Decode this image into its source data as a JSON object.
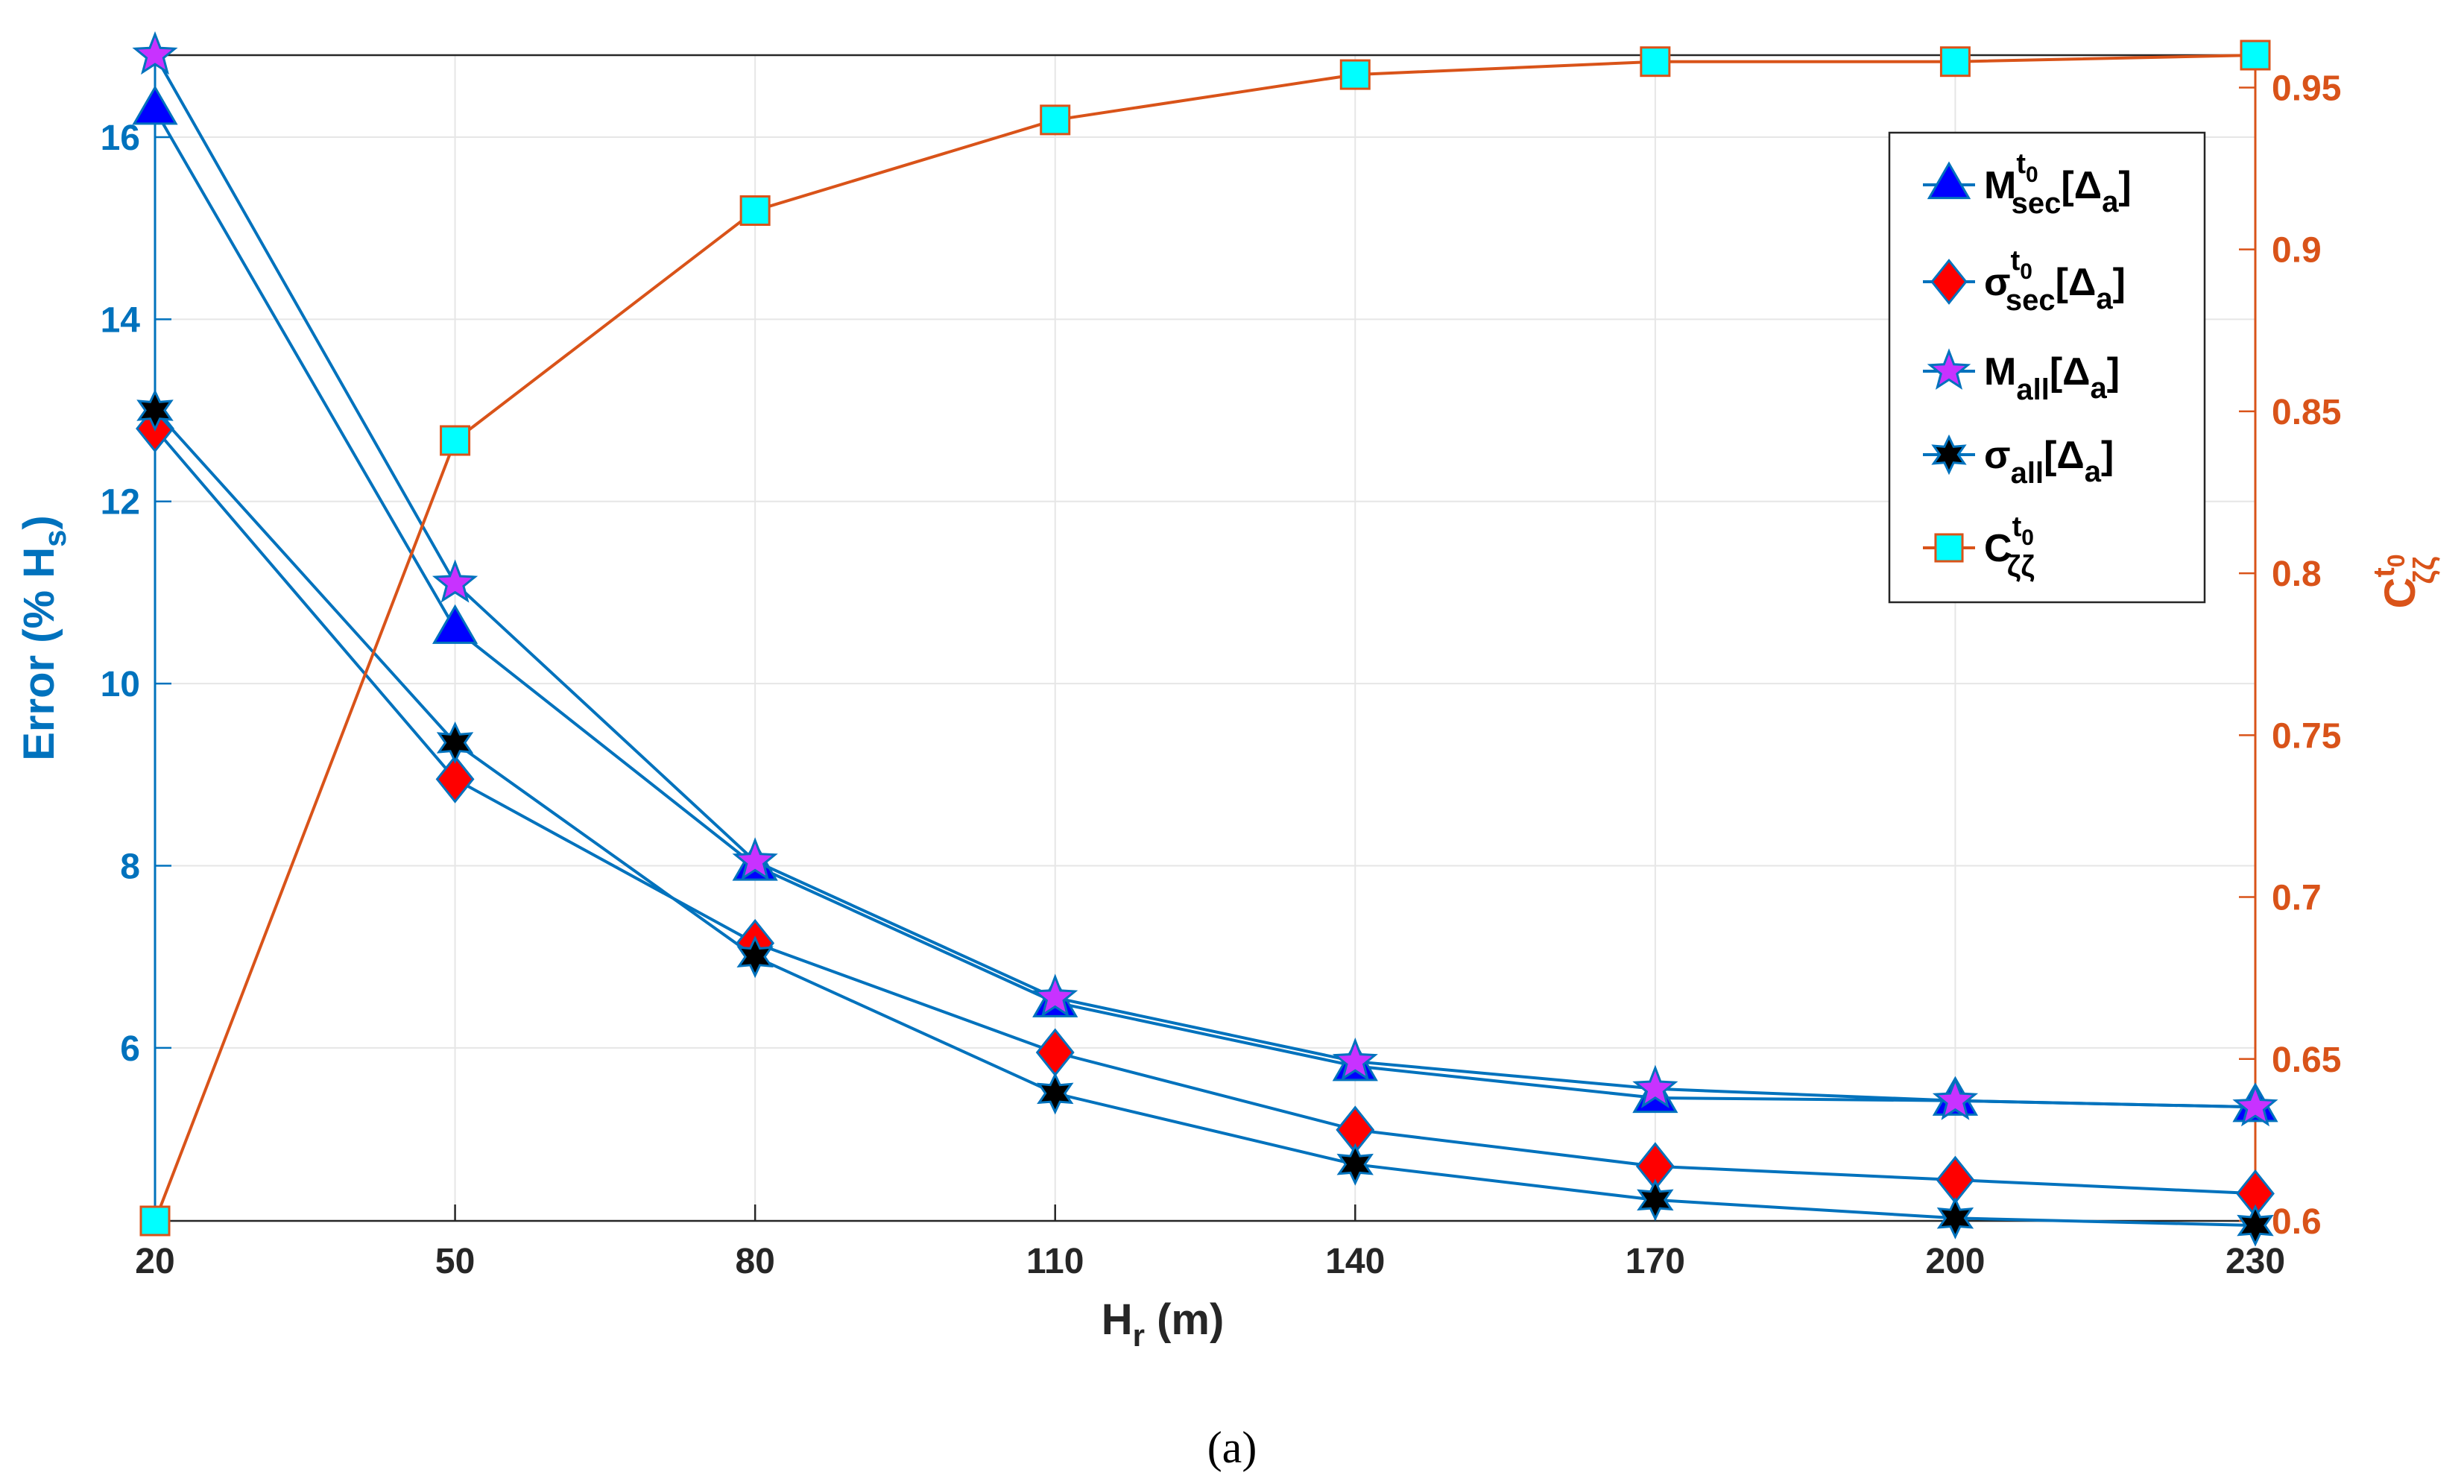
{
  "chart_data": {
    "type": "line",
    "x": [
      20,
      50,
      80,
      110,
      140,
      170,
      200,
      230
    ],
    "xlabel": {
      "main": "H",
      "sub": "r",
      "unit": " (m)"
    },
    "xlim": [
      20,
      230
    ],
    "xticks": [
      "20",
      "50",
      "80",
      "110",
      "140",
      "170",
      "200",
      "230"
    ],
    "ylabel_left": {
      "main": "Error (% H",
      "sub": "s",
      "close": ")"
    },
    "ylim_left": [
      4.1,
      16.9
    ],
    "yticks_left": [
      "6",
      "8",
      "10",
      "12",
      "14",
      "16"
    ],
    "ylabel_right": {
      "main": "C",
      "sup": "t",
      "supsub": "0",
      "sub": "ζζ"
    },
    "ylim_right": [
      0.6,
      0.96
    ],
    "yticks_right": [
      "0.6",
      "0.65",
      "0.7",
      "0.75",
      "0.8",
      "0.85",
      "0.9",
      "0.95"
    ],
    "grid": true,
    "legend_position": "top-right",
    "series": [
      {
        "name": "M_sec^t0[Δa]",
        "legend": {
          "main": "M",
          "sup": "t",
          "supsub": "0",
          "sub": "sec",
          "bracket": "[Δ",
          "bsub": "a",
          "close": "]"
        },
        "axis": "left",
        "marker": "triangle",
        "marker_color": "#0000ff",
        "line_color": "#0072bd",
        "values": [
          16.3,
          10.6,
          8.0,
          6.5,
          5.8,
          5.45,
          5.42,
          5.35
        ]
      },
      {
        "name": "σ_sec^t0[Δa]",
        "legend": {
          "main": "σ",
          "sup": "t",
          "supsub": "0",
          "sub": "sec",
          "bracket": "[Δ",
          "bsub": "a",
          "close": "]"
        },
        "axis": "left",
        "marker": "diamond",
        "marker_color": "#ff0000",
        "line_color": "#0072bd",
        "values": [
          12.8,
          8.95,
          7.15,
          5.95,
          5.1,
          4.7,
          4.55,
          4.4
        ]
      },
      {
        "name": "M_all[Δa]",
        "legend": {
          "main": "M",
          "sub": "all",
          "bracket": "[Δ",
          "bsub": "a",
          "close": "]"
        },
        "axis": "left",
        "marker": "star",
        "marker_color": "#c832ff",
        "line_color": "#0072bd",
        "values": [
          16.9,
          11.1,
          8.05,
          6.55,
          5.85,
          5.55,
          5.42,
          5.35
        ]
      },
      {
        "name": "σ_all[Δa]",
        "legend": {
          "main": "σ",
          "sub": "all",
          "bracket": "[Δ",
          "bsub": "a",
          "close": "]"
        },
        "axis": "left",
        "marker": "hexagram",
        "marker_color": "#000000",
        "line_color": "#0072bd",
        "values": [
          13.0,
          9.35,
          7.0,
          5.5,
          4.72,
          4.33,
          4.13,
          4.05
        ]
      },
      {
        "name": "C_ζζ^t0",
        "legend": {
          "main": "C",
          "sup": "t",
          "supsub": "0",
          "sub": "ζζ"
        },
        "axis": "right",
        "marker": "square",
        "marker_color": "#00ffff",
        "line_color": "#d95319",
        "values": [
          0.6,
          0.841,
          0.912,
          0.94,
          0.954,
          0.958,
          0.958,
          0.96
        ]
      }
    ]
  },
  "caption": "(a)",
  "colors": {
    "left_axis": "#0072bd",
    "right_axis": "#d95319",
    "grid": "#e6e6e6",
    "frame": "#262626"
  }
}
